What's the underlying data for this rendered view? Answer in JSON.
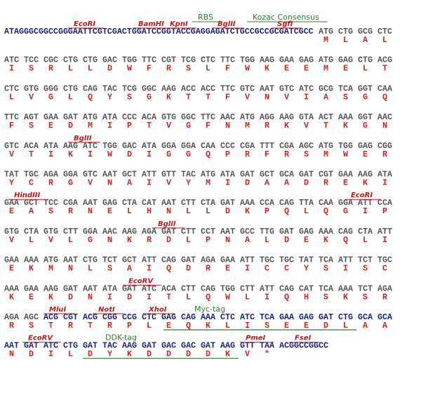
{
  "sequence_map": {
    "rows": [
      {
        "prefix": "ATAGGGCGGCCGGGAATTCGTCGACTGGATCCGGTACCGAGGAGATCTGCCGCCGCGATCGCC",
        "codons": [
          "ATG",
          "CTG",
          "GCG",
          "CTC"
        ],
        "aa": [
          "M",
          "L",
          "A",
          "L"
        ],
        "features": [
          "RBS",
          "Kozac Consensus",
          "EcoRI",
          "BamHI",
          "KpnI",
          "BglII",
          "SgfI"
        ]
      },
      {
        "codons": [
          "ATC",
          "TCC",
          "CGC",
          "CTG",
          "CTG",
          "GAC",
          "TGG",
          "TTC",
          "CGT",
          "TCG",
          "CTC",
          "TTC",
          "TGG",
          "AAG",
          "GAA",
          "GAG",
          "ATG",
          "GAG",
          "CTG",
          "ACG"
        ],
        "aa": [
          "I",
          "S",
          "R",
          "L",
          "L",
          "D",
          "W",
          "F",
          "R",
          "S",
          "L",
          "F",
          "W",
          "K",
          "E",
          "E",
          "M",
          "E",
          "L",
          "T"
        ],
        "features": []
      },
      {
        "codons": [
          "CTC",
          "GTG",
          "GGG",
          "CTG",
          "CAG",
          "TAC",
          "TCG",
          "GGC",
          "AAG",
          "ACC",
          "ACC",
          "TTC",
          "GTC",
          "AAT",
          "GTC",
          "ATC",
          "GCG",
          "TCA",
          "GGT",
          "CAA"
        ],
        "aa": [
          "L",
          "V",
          "G",
          "L",
          "Q",
          "Y",
          "S",
          "G",
          "K",
          "T",
          "T",
          "F",
          "V",
          "N",
          "V",
          "I",
          "A",
          "S",
          "G",
          "Q"
        ],
        "features": []
      },
      {
        "codons": [
          "TTC",
          "AGT",
          "GAA",
          "GAT",
          "ATG",
          "ATA",
          "CCC",
          "ACA",
          "GTG",
          "GGC",
          "TTC",
          "AAC",
          "ATG",
          "AGG",
          "AAG",
          "GTA",
          "ACT",
          "AAA",
          "GGT",
          "AAC"
        ],
        "aa": [
          "F",
          "S",
          "E",
          "D",
          "M",
          "I",
          "P",
          "T",
          "V",
          "G",
          "F",
          "N",
          "M",
          "R",
          "K",
          "V",
          "T",
          "K",
          "G",
          "N"
        ],
        "features": []
      },
      {
        "codons": [
          "GTC",
          "ACA",
          "ATA",
          "AAG",
          "ATC",
          "TGG",
          "GAC",
          "ATA",
          "GGA",
          "GGA",
          "CAA",
          "CCC",
          "CGA",
          "TTT",
          "CGA",
          "AGC",
          "ATG",
          "TGG",
          "GAG",
          "CGG"
        ],
        "aa": [
          "V",
          "T",
          "I",
          "K",
          "I",
          "W",
          "D",
          "I",
          "G",
          "G",
          "Q",
          "P",
          "R",
          "F",
          "R",
          "S",
          "M",
          "W",
          "E",
          "R"
        ],
        "features": [
          "BglII"
        ]
      },
      {
        "codons": [
          "TAT",
          "TGC",
          "AGA",
          "GGA",
          "GTC",
          "AAT",
          "GCT",
          "ATT",
          "GTT",
          "TAC",
          "ATG",
          "ATA",
          "GAT",
          "GCT",
          "GCA",
          "GAT",
          "CGT",
          "GAA",
          "AAG",
          "ATA"
        ],
        "aa": [
          "Y",
          "C",
          "R",
          "G",
          "V",
          "N",
          "A",
          "I",
          "V",
          "Y",
          "M",
          "I",
          "D",
          "A",
          "A",
          "D",
          "R",
          "E",
          "K",
          "I"
        ],
        "features": []
      },
      {
        "codons": [
          "GAA",
          "GCT",
          "TCC",
          "CGA",
          "AAT",
          "GAG",
          "CTA",
          "CAT",
          "AAT",
          "CTT",
          "CTA",
          "GAT",
          "AAA",
          "CCA",
          "CAG",
          "TTA",
          "CAA",
          "GGA",
          "ATT",
          "CCA"
        ],
        "aa": [
          "E",
          "A",
          "S",
          "R",
          "N",
          "E",
          "L",
          "H",
          "N",
          "L",
          "L",
          "D",
          "K",
          "P",
          "Q",
          "L",
          "Q",
          "G",
          "I",
          "P"
        ],
        "features": [
          "HindIII",
          "EcoRI"
        ]
      },
      {
        "codons": [
          "GTG",
          "CTA",
          "GTG",
          "CTT",
          "GGA",
          "AAC",
          "AAG",
          "AGA",
          "GAT",
          "CTT",
          "CCT",
          "AAT",
          "GCC",
          "TTG",
          "GAT",
          "GAG",
          "AAA",
          "CAG",
          "CTA",
          "ATT"
        ],
        "aa": [
          "V",
          "L",
          "V",
          "L",
          "G",
          "N",
          "K",
          "R",
          "D",
          "L",
          "P",
          "N",
          "A",
          "L",
          "D",
          "E",
          "K",
          "Q",
          "L",
          "I"
        ],
        "features": [
          "BglII"
        ]
      },
      {
        "codons": [
          "GAA",
          "AAA",
          "ATG",
          "AAT",
          "CTG",
          "TCT",
          "GCT",
          "ATT",
          "CAG",
          "GAT",
          "AGA",
          "GAA",
          "ATT",
          "TGC",
          "TGC",
          "TAT",
          "TCA",
          "ATT",
          "TCT",
          "TGC"
        ],
        "aa": [
          "E",
          "K",
          "M",
          "N",
          "L",
          "S",
          "A",
          "I",
          "Q",
          "D",
          "R",
          "E",
          "I",
          "C",
          "C",
          "Y",
          "S",
          "I",
          "S",
          "C"
        ],
        "features": []
      },
      {
        "codons": [
          "AAA",
          "GAA",
          "AAG",
          "GAT",
          "AAT",
          "ATA",
          "GAT",
          "ATC",
          "ACA",
          "CTT",
          "CAG",
          "TGG",
          "CTT",
          "ATT",
          "CAG",
          "CAT",
          "TCA",
          "AAA",
          "TCT",
          "AGA"
        ],
        "aa": [
          "K",
          "E",
          "K",
          "D",
          "N",
          "I",
          "D",
          "I",
          "T",
          "L",
          "Q",
          "W",
          "L",
          "I",
          "Q",
          "H",
          "S",
          "K",
          "S",
          "R"
        ],
        "features": [
          "EcoRV"
        ]
      },
      {
        "codons": [
          "AGA",
          "AGC",
          "ACG",
          "CGT",
          "ACG",
          "CGG",
          "CCG",
          "CTC",
          "GAG",
          "CAG",
          "AAA",
          "CTC",
          "ATC",
          "TCA",
          "GAA",
          "GAG",
          "GAT",
          "CTG",
          "GCA",
          "GCA"
        ],
        "aa": [
          "R",
          "S",
          "T",
          "R",
          "T",
          "R",
          "P",
          "L",
          "E",
          "Q",
          "K",
          "L",
          "I",
          "S",
          "E",
          "E",
          "D",
          "L",
          "A",
          "A"
        ],
        "features": [
          "MluI",
          "NotI",
          "XhoI",
          "Myc-tag"
        ]
      },
      {
        "codons": [
          "AAT",
          "GAT",
          "ATC",
          "CTG",
          "GAT",
          "TAC",
          "AAG",
          "GAT",
          "GAC",
          "GAC",
          "GAT",
          "AAG",
          "GTT",
          "TAA"
        ],
        "aa": [
          "N",
          "D",
          "I",
          "L",
          "D",
          "Y",
          "K",
          "D",
          "D",
          "D",
          "D",
          "K",
          "V",
          "*"
        ],
        "suffix": "ACGGCCGGCC",
        "features": [
          "EcoRV",
          "DDK-tag",
          "PmeI",
          "FseI"
        ]
      }
    ]
  }
}
